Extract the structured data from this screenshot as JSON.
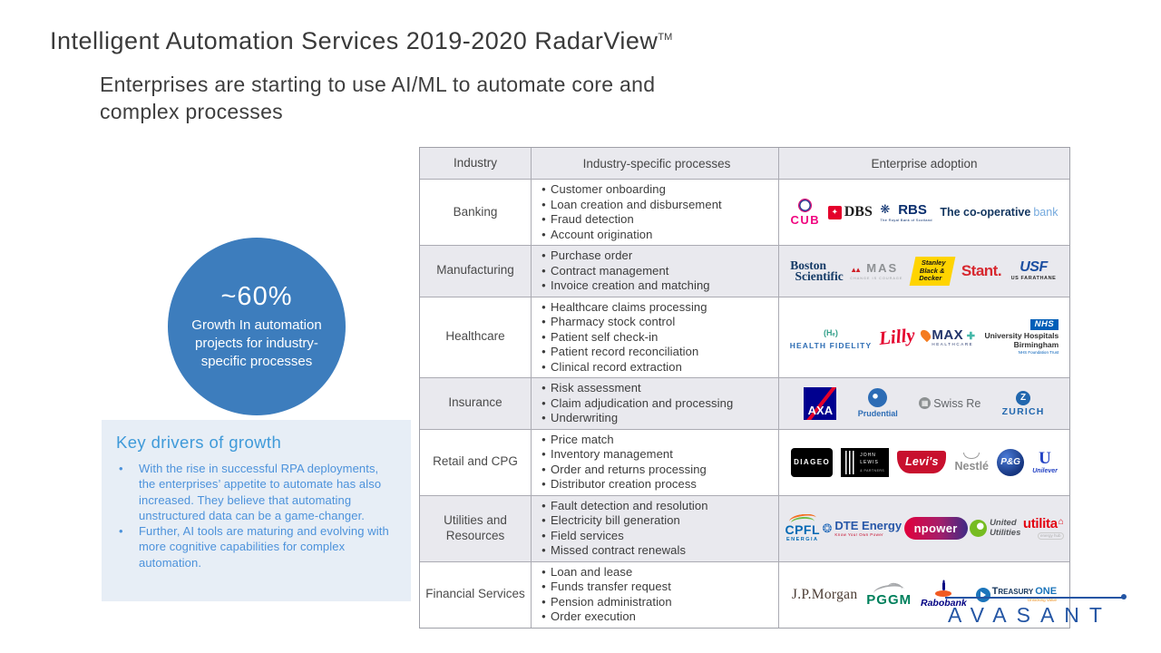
{
  "slide": {
    "title": "Intelligent Automation Services 2019-2020 RadarView",
    "title_superscript": "TM",
    "subtitle": "Enterprises are starting to use AI/ML to automate core and complex processes"
  },
  "stat_circle": {
    "value": "~60%",
    "label": "Growth In automation projects for industry-specific processes"
  },
  "key_drivers": {
    "heading": "Key drivers of growth",
    "bullets": [
      "With the rise in successful RPA deployments, the enterprises’ appetite to automate has also increased. They believe that automating unstructured data can be a game-changer.",
      "Further, AI tools are maturing and evolving with more cognitive capabilities for complex automation."
    ]
  },
  "table": {
    "headers": [
      "Industry",
      "Industry-specific processes",
      "Enterprise adoption"
    ],
    "rows": [
      {
        "industry": "Banking",
        "processes": [
          "Customer onboarding",
          "Loan creation and disbursement",
          "Fraud detection",
          "Account origination"
        ],
        "companies": [
          {
            "id": "cub",
            "text": "CUB",
            "icon": "cub-emblem-icon"
          },
          {
            "id": "dbs",
            "text": "DBS",
            "icon": "dbs-mark-icon"
          },
          {
            "id": "rbs",
            "text": "RBS",
            "sub": "The Royal Bank of Scotland",
            "icon": "rbs-daisy-icon"
          },
          {
            "id": "coop",
            "text": "The co-operative",
            "sub": "bank"
          }
        ]
      },
      {
        "industry": "Manufacturing",
        "processes": [
          "Purchase order",
          "Contract management",
          "Invoice creation and matching"
        ],
        "companies": [
          {
            "id": "boston",
            "text": "Boston",
            "sub": "Scientific"
          },
          {
            "id": "mas",
            "text": "MAS",
            "sub": "CHANGE IS COURAGE",
            "icon": "mas-peaks-icon"
          },
          {
            "id": "sbd",
            "text": "Stanley",
            "sub": "Black &",
            "sub2": "Decker"
          },
          {
            "id": "stant",
            "text": "Stant."
          },
          {
            "id": "usf",
            "text": "USF",
            "sub": "US FARATHANE"
          }
        ]
      },
      {
        "industry": "Healthcare",
        "processes": [
          "Healthcare claims processing",
          "Pharmacy stock control",
          "Patient self check-in",
          "Patient record reconciliation",
          "Clinical record extraction"
        ],
        "companies": [
          {
            "id": "healthfidelity",
            "text": "HEALTH FIDELITY",
            "icon": "health-fidelity-mark-icon"
          },
          {
            "id": "lilly",
            "text": "Lilly"
          },
          {
            "id": "max",
            "text": "MAX",
            "sub": "HEALTHCARE",
            "icon": "max-flame-icon"
          },
          {
            "id": "nhs",
            "text": "NHS",
            "sub": "University Hospitals Birmingham",
            "sub2": "NHS Foundation Trust"
          }
        ]
      },
      {
        "industry": "Insurance",
        "processes": [
          "Risk assessment",
          "Claim adjudication and processing",
          "Underwriting"
        ],
        "companies": [
          {
            "id": "axa",
            "text": "AXA"
          },
          {
            "id": "prudential",
            "text": "Prudential",
            "icon": "prudential-face-icon"
          },
          {
            "id": "swissre",
            "text": "Swiss Re",
            "icon": "swissre-globe-icon"
          },
          {
            "id": "zurich",
            "text": "ZURICH",
            "icon": "zurich-z-icon"
          }
        ]
      },
      {
        "industry": "Retail and CPG",
        "processes": [
          "Price match",
          "Inventory management",
          "Order and returns processing",
          "Distributor creation process"
        ],
        "companies": [
          {
            "id": "diageo",
            "text": "DIAGEO"
          },
          {
            "id": "johnlewis",
            "text": "JOHN LEWIS",
            "sub": "& PARTNERS",
            "icon": "johnlewis-stripes-icon"
          },
          {
            "id": "levis",
            "text": "Levi's"
          },
          {
            "id": "nestle",
            "text": "Nestlé",
            "icon": "nestle-nest-icon"
          },
          {
            "id": "pg",
            "text": "P&G"
          },
          {
            "id": "unilever",
            "text": "Unilever",
            "icon": "unilever-u-icon"
          }
        ]
      },
      {
        "industry": "Utilities and Resources",
        "processes": [
          "Fault detection and resolution",
          "Electricity bill generation",
          "Field services",
          "Missed contract renewals"
        ],
        "companies": [
          {
            "id": "cpfl",
            "text": "CPFL",
            "sub": "ENERGIA",
            "icon": "cpfl-arcs-icon"
          },
          {
            "id": "dte",
            "text": "DTE Energy",
            "sub": "Know Your Own Power",
            "icon": "dte-globe-icon"
          },
          {
            "id": "npower",
            "text": "npower"
          },
          {
            "id": "uu",
            "text": "United",
            "sub": "Utilities",
            "icon": "united-utilities-orb-icon"
          },
          {
            "id": "utilita",
            "text": "utilita",
            "sub": "energy hub"
          }
        ]
      },
      {
        "industry": "Financial Services",
        "processes": [
          "Loan and lease",
          "Funds transfer request",
          "Pension administration",
          "Order execution"
        ],
        "companies": [
          {
            "id": "jpmorgan",
            "text": "J.P.Morgan"
          },
          {
            "id": "pggm",
            "text": "PGGM",
            "icon": "pggm-bird-icon"
          },
          {
            "id": "rabobank",
            "text": "Rabobank",
            "icon": "rabobank-figure-icon"
          },
          {
            "id": "treasuryone",
            "text": "Treasury",
            "sub": "ONE",
            "sub2": "Unlocking Value",
            "icon": "treasuryone-circle-icon"
          }
        ]
      }
    ]
  },
  "footer": {
    "brand": "AVASANT"
  },
  "colors": {
    "stat_circle_blue": "#3D7DBD",
    "key_drivers_panel_bg": "#E7EEF6",
    "key_drivers_heading_blue": "#3F9AD9",
    "key_drivers_text_blue": "#4C92DB",
    "table_header_bg": "#E9E9EE",
    "table_border_gray": "#ABABB3",
    "brand_blue": "#2355A4"
  }
}
